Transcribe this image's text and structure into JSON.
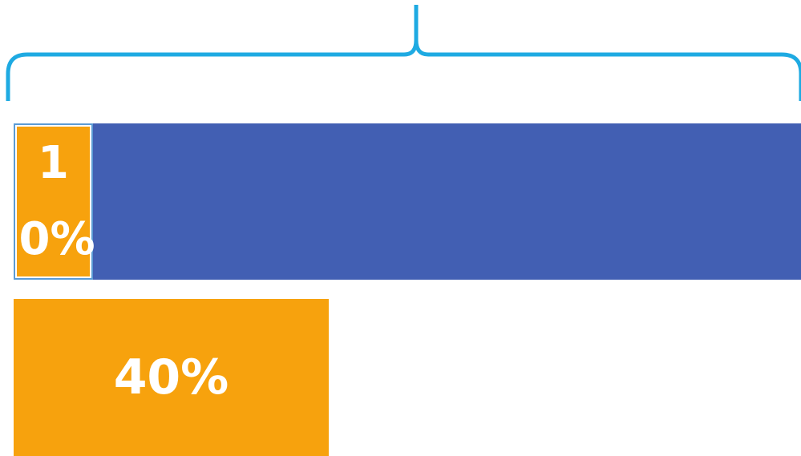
{
  "diagram": {
    "colors": {
      "brace": "#1eaae2",
      "whole_bar": "#425fb3",
      "part_bar": "#f7a20d",
      "small_border": "#5b9bd5"
    },
    "small_segment": {
      "label": "10%",
      "value_percent": 10
    },
    "partial_bar": {
      "label": "40%",
      "value_percent": 40
    }
  }
}
